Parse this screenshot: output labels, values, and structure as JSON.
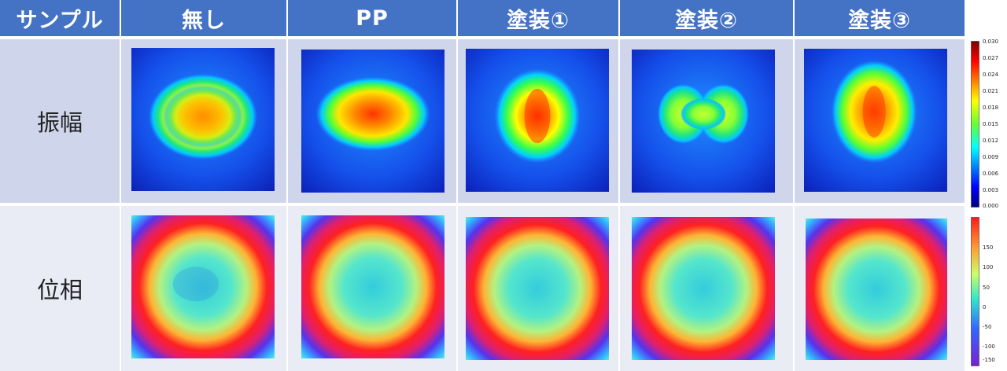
{
  "header": {
    "col0": "サンプル",
    "samples": [
      "無し",
      "PP",
      "塗装①",
      "塗装②",
      "塗装③"
    ]
  },
  "rows": {
    "amplitude": "振幅",
    "phase": "位相"
  },
  "colorbars": {
    "amplitude_ticks": [
      "0.030",
      "0.027",
      "0.024",
      "0.021",
      "0.018",
      "0.015",
      "0.012",
      "0.009",
      "0.006",
      "0.003",
      "0.000"
    ],
    "phase_ticks": [
      "150",
      "100",
      "50",
      "0",
      "-50",
      "-100",
      "-150"
    ]
  },
  "colors": {
    "header_bg": "#4472c4",
    "amplitude_row_bg": "#cfd5ea",
    "phase_row_bg": "#e9ebf5"
  }
}
